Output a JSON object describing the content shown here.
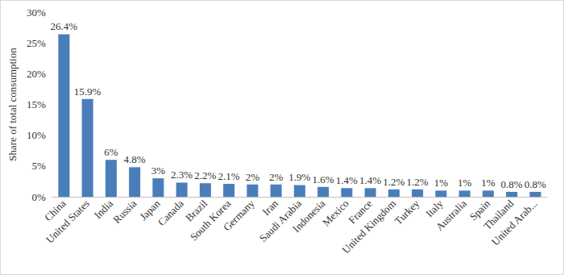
{
  "chart_data": {
    "type": "bar",
    "y_label": "Share of total consumption",
    "categories": [
      "China",
      "United States",
      "India",
      "Russia",
      "Japan",
      "Canada",
      "Brazil",
      "South Korea",
      "Germany",
      "Iran",
      "Saudi Arabia",
      "Indonesia",
      "Mexico",
      "France",
      "United Kingdom",
      "Turkey",
      "Italy",
      "Australia",
      "Spain",
      "Thailand",
      "United Arab..."
    ],
    "values": [
      26.4,
      15.9,
      6,
      4.8,
      3,
      2.3,
      2.2,
      2.1,
      2,
      2,
      1.9,
      1.6,
      1.4,
      1.4,
      1.2,
      1.2,
      1,
      1,
      1,
      0.8,
      0.8
    ],
    "value_labels": [
      "26.4%",
      "15.9%",
      "6%",
      "4.8%",
      "3%",
      "2.3%",
      "2.2%",
      "2.1%",
      "2%",
      "2%",
      "1.9%",
      "1.6%",
      "1.4%",
      "1.4%",
      "1.2%",
      "1.2%",
      "1%",
      "1%",
      "1%",
      "0.8%",
      "0.8%"
    ],
    "color": "#4a7ebb",
    "ylim": [
      0,
      30
    ],
    "yticks": [
      {
        "value": 0,
        "label": "0%"
      },
      {
        "value": 5,
        "label": "5%"
      },
      {
        "value": 10,
        "label": "10%"
      },
      {
        "value": 15,
        "label": "15%"
      },
      {
        "value": 20,
        "label": "20%"
      },
      {
        "value": 25,
        "label": "25%"
      },
      {
        "value": 30,
        "label": "30%"
      }
    ],
    "grid": false,
    "data_labels": true
  }
}
